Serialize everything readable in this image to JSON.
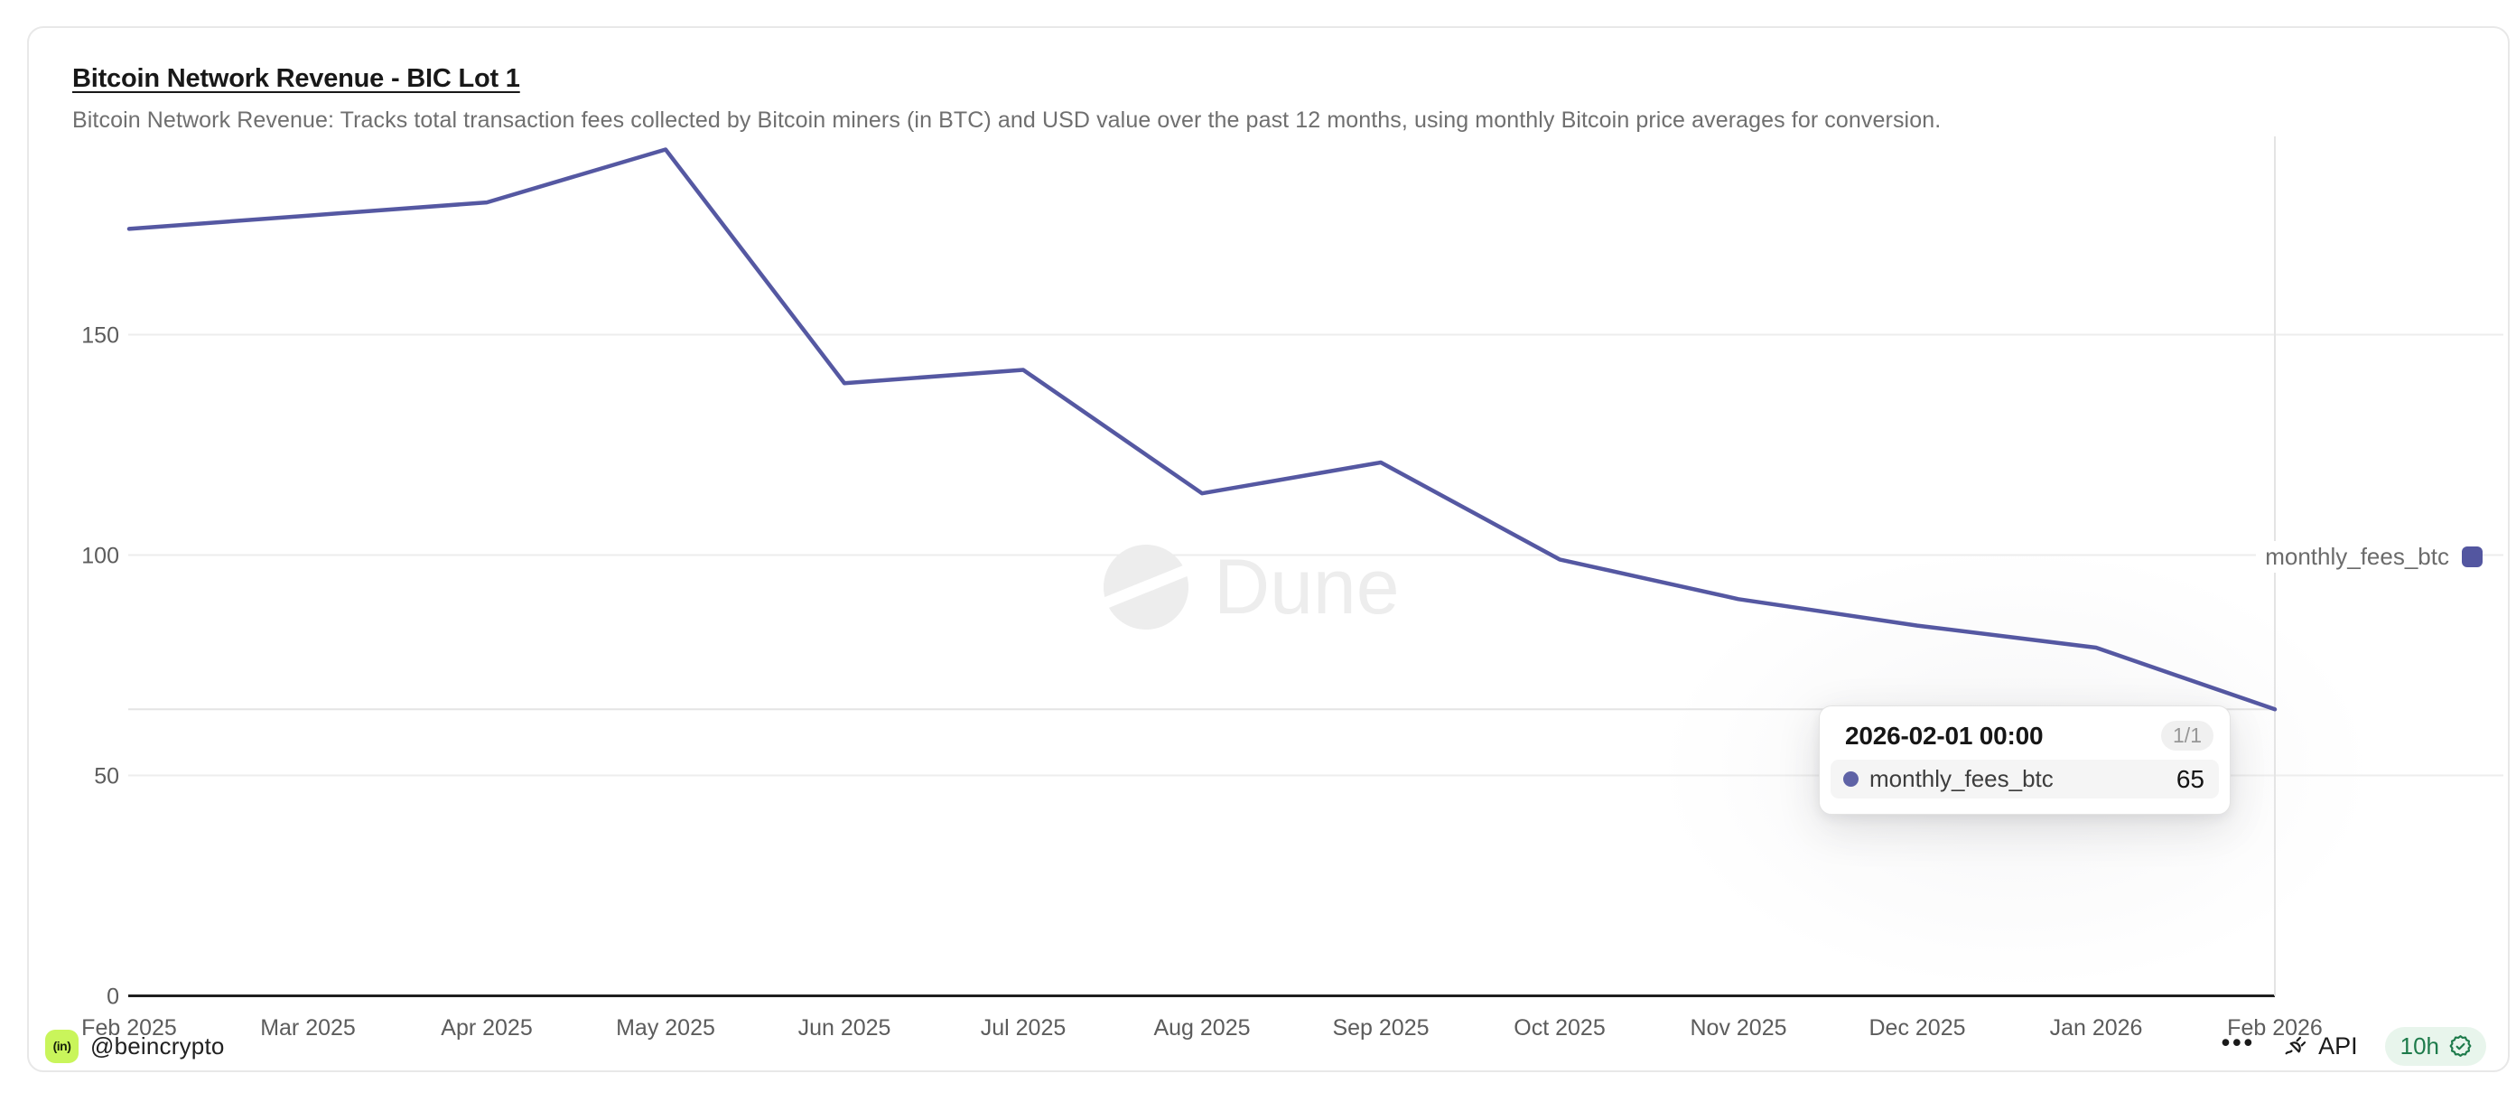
{
  "card": {
    "title": "Bitcoin Network Revenue - BIC Lot 1",
    "subtitle": "Bitcoin Network Revenue: Tracks total transaction fees collected by Bitcoin miners (in BTC) and USD value over the past 12 months, using monthly Bitcoin price averages for conversion."
  },
  "chart_data": {
    "type": "line",
    "title": "Bitcoin Network Revenue - BIC Lot 1",
    "categories": [
      "Feb 2025",
      "Mar 2025",
      "Apr 2025",
      "May 2025",
      "Jun 2025",
      "Jul 2025",
      "Aug 2025",
      "Sep 2025",
      "Oct 2025",
      "Nov 2025",
      "Dec 2025",
      "Jan 2026",
      "Feb 2026"
    ],
    "series": [
      {
        "name": "monthly_fees_btc",
        "color": "#5558a2",
        "values": [
          174,
          177,
          180,
          192,
          139,
          142,
          114,
          121,
          99,
          90,
          84,
          79,
          65
        ]
      }
    ],
    "y_ticks": [
      0,
      50,
      100,
      150
    ],
    "ylim": [
      0,
      197
    ],
    "grid": true,
    "legend_position": "right",
    "crosshair": {
      "x_index": 12,
      "y_value": 65
    },
    "watermark": "Dune"
  },
  "legend": {
    "label": "monthly_fees_btc",
    "color": "#5356a0"
  },
  "watermark": {
    "text": "Dune"
  },
  "tooltip": {
    "date": "2026-02-01 00:00",
    "page_badge": "1/1",
    "series_label": "monthly_fees_btc",
    "value": "65",
    "dot_color": "#5f63a6"
  },
  "footer": {
    "logo_text": "(in)",
    "author": "@beincrypto",
    "menu_label": "•••",
    "api_label": "API",
    "refresh_time": "10h"
  },
  "colors": {
    "line": "#5558a2",
    "gridline": "#ededed",
    "axis": "#1f1f1f",
    "crosshair": "#e4e4e4",
    "badge_green": "#1e7b4b",
    "badge_bg": "#e8f5ec",
    "logo_lime": "#c9f55b"
  }
}
